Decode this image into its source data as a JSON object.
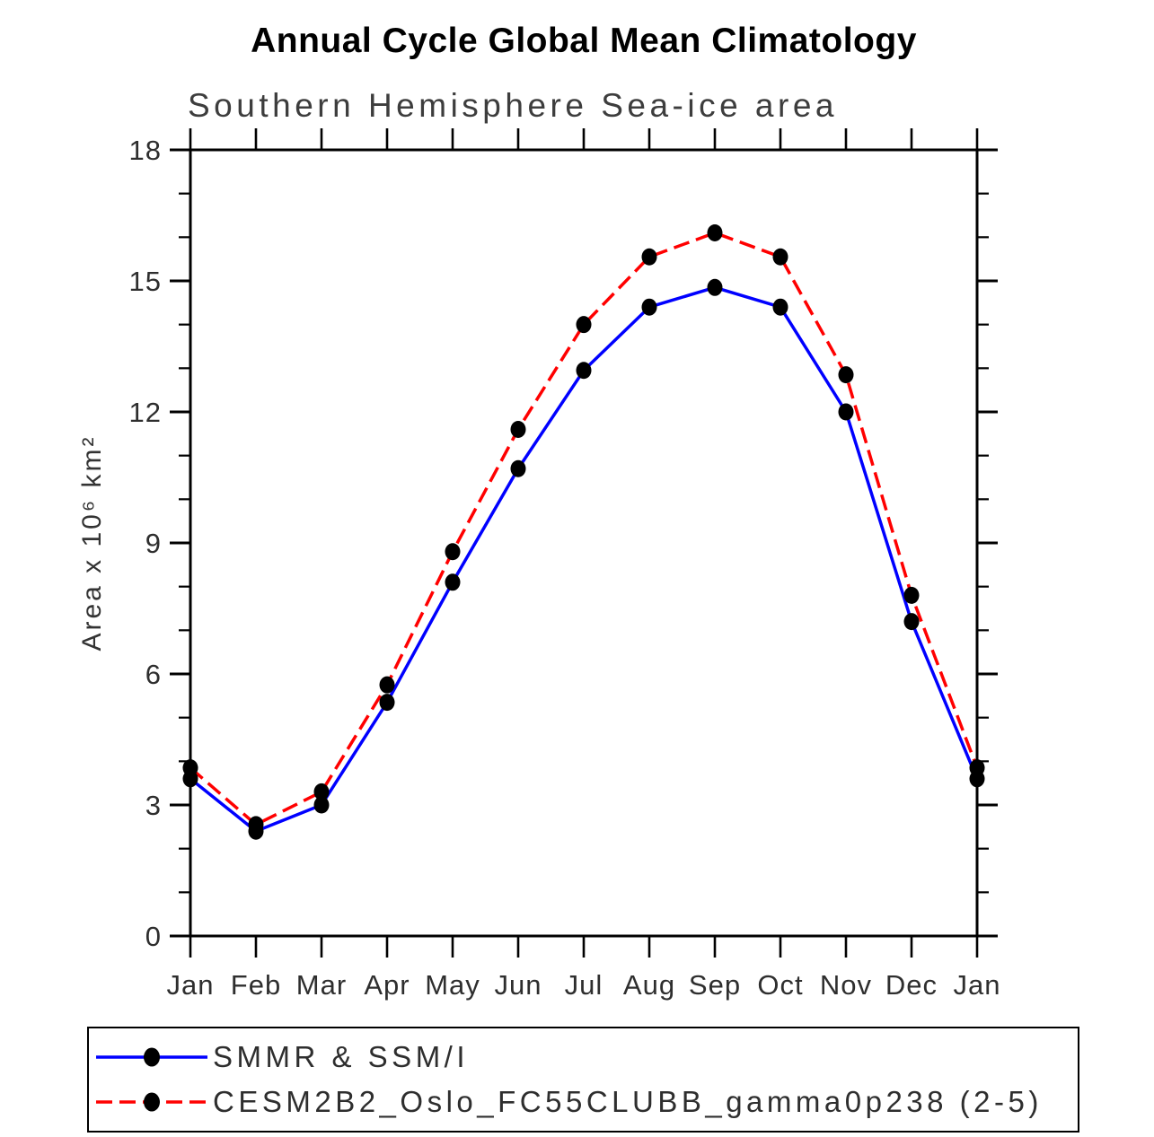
{
  "chart": {
    "title": "Annual Cycle Global Mean Climatology",
    "subtitle": "Southern Hemisphere Sea-ice area",
    "ylabel": "Area x 10⁶ km²"
  },
  "chart_data": {
    "type": "line",
    "title": "Annual Cycle Global Mean Climatology",
    "subtitle": "Southern Hemisphere Sea-ice area",
    "xlabel": "",
    "ylabel": "Area x 10^6 km^2",
    "categories": [
      "Jan",
      "Feb",
      "Mar",
      "Apr",
      "May",
      "Jun",
      "Jul",
      "Aug",
      "Sep",
      "Oct",
      "Nov",
      "Dec",
      "Jan"
    ],
    "ylim": [
      0,
      18
    ],
    "ytick_major": [
      0,
      3,
      6,
      9,
      12,
      15,
      18
    ],
    "ytick_minor_step": 1,
    "grid": false,
    "legend_position": "bottom",
    "marker": {
      "shape": "filled-circle",
      "color": "#000000"
    },
    "axis_color": "#000000",
    "series": [
      {
        "name": "SMMR & SSM/I",
        "color": "#0000ff",
        "style": "solid",
        "values": [
          3.6,
          2.4,
          3.0,
          5.35,
          8.1,
          10.7,
          12.95,
          14.4,
          14.85,
          14.4,
          12.0,
          7.2,
          3.6
        ]
      },
      {
        "name": "CESM2B2_Oslo_FC55CLUBB_gamma0p238 (2-5)",
        "color": "#ff0000",
        "style": "dashed",
        "values": [
          3.85,
          2.55,
          3.3,
          5.75,
          8.8,
          11.6,
          14.0,
          15.55,
          16.1,
          15.55,
          12.85,
          7.8,
          3.85
        ]
      }
    ]
  }
}
